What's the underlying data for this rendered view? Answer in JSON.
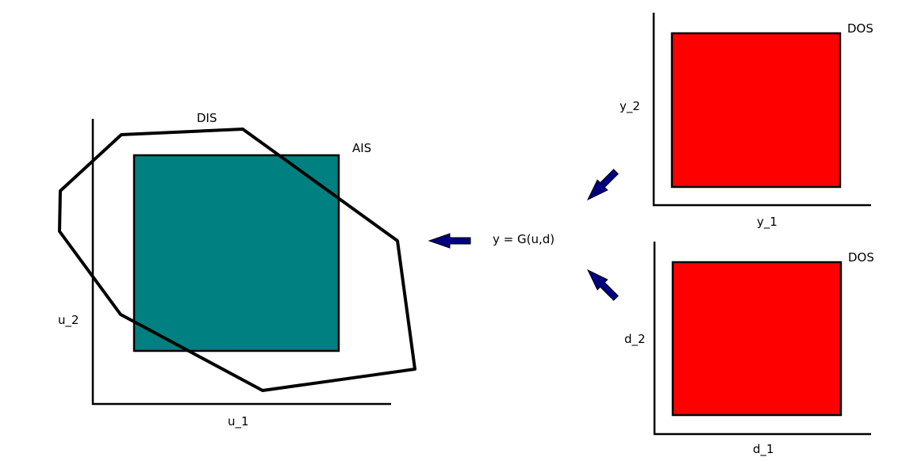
{
  "colors": {
    "background": "#ffffff",
    "ais_fill": "#008080",
    "dos_fill": "#ff0000",
    "outline": "#000000",
    "arrow": "#000080"
  },
  "input_space": {
    "x_axis_label": "u_1",
    "y_axis_label": "u_2",
    "dis_label": "DIS",
    "ais_label": "AIS"
  },
  "mapping": {
    "equation": "y = G(u,d)"
  },
  "output_space": {
    "x_axis_label": "y_1",
    "y_axis_label": "y_2",
    "region_label": "DOS"
  },
  "disturbance_space": {
    "x_axis_label": "d_1",
    "y_axis_label": "d_2",
    "region_label": "DOS"
  },
  "arrows": [
    {
      "icon": "arrow-left-icon",
      "direction": "left"
    },
    {
      "icon": "arrow-down-left-icon",
      "direction": "down-left"
    },
    {
      "icon": "arrow-up-left-icon",
      "direction": "up-left"
    }
  ]
}
